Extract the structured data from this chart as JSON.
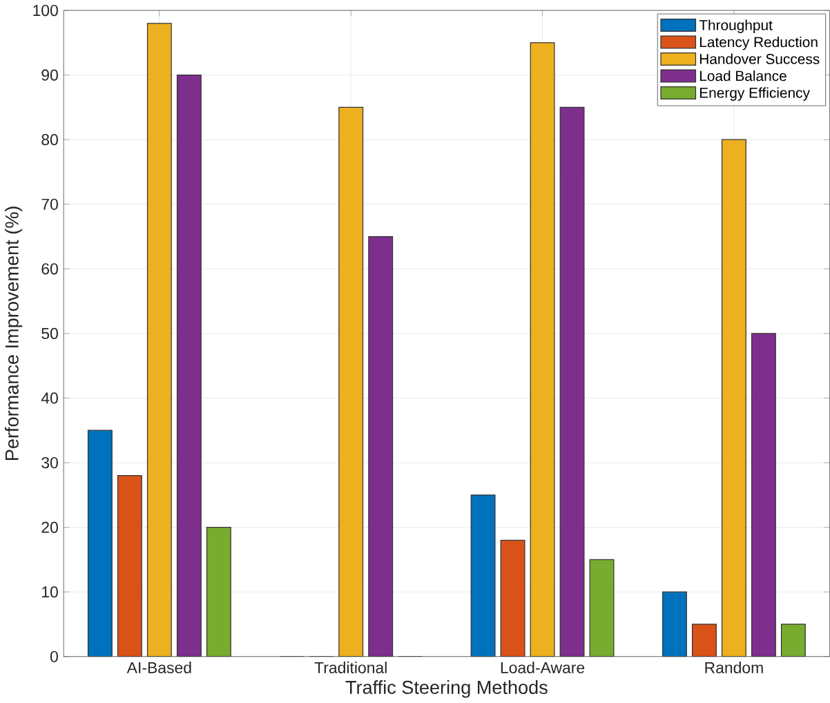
{
  "chart_data": {
    "type": "bar",
    "xlabel": "Traffic Steering Methods",
    "ylabel": "Performance Improvement (%)",
    "categories": [
      "AI-Based",
      "Traditional",
      "Load-Aware",
      "Random"
    ],
    "series": [
      {
        "name": "Throughput",
        "color": "#0072bd",
        "values": [
          35,
          0,
          25,
          10
        ]
      },
      {
        "name": "Latency Reduction",
        "color": "#d95319",
        "values": [
          28,
          0,
          18,
          5
        ]
      },
      {
        "name": "Handover Success",
        "color": "#edb120",
        "values": [
          98,
          85,
          95,
          80
        ]
      },
      {
        "name": "Load Balance",
        "color": "#7e2f8e",
        "values": [
          90,
          65,
          85,
          50
        ]
      },
      {
        "name": "Energy Efficiency",
        "color": "#77ac30",
        "values": [
          20,
          0,
          15,
          5
        ]
      }
    ],
    "ylim": [
      0,
      100
    ],
    "yticks": [
      0,
      10,
      20,
      30,
      40,
      50,
      60,
      70,
      80,
      90,
      100
    ],
    "grid": true,
    "legend": "top right"
  }
}
